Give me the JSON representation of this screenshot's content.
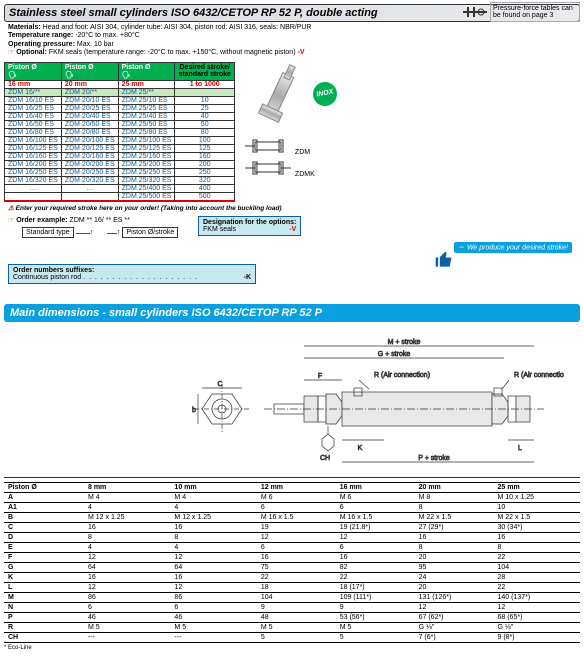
{
  "top": {
    "title": "Stainless steel small cylinders ISO 6432/CETOP RP 52 P, double acting",
    "pressure_note": "Pressure-force tables can be found on page 3",
    "materials_label": "Materials:",
    "materials": "Head and foot: AISI 304, cylinder tube: AISI 304, piston rod: AISI 316, seals: NBR/PUR",
    "temp_label": "Temperature range:",
    "temp": "-20°C to max. +80°C",
    "press_label": "Operating pressure:",
    "press": "Max. 10 bar",
    "opt_label": "Optional:",
    "opt": "FKM seals (temperature range: -20°C to max. +150°C, without magnetic piston)",
    "opt_suffix": "-V"
  },
  "cyl_table": {
    "piston_label": "Piston Ø",
    "cols": [
      "16 mm",
      "20 mm",
      "25 mm"
    ],
    "sub": [
      "ZDM 16/**",
      "ZDM 20/**",
      "ZDM 25/**"
    ],
    "stroke_hdr1": "Desired stroke/",
    "stroke_hdr2": "standard stroke",
    "stroke_range": "1 to 1000",
    "rows": [
      {
        "c": [
          "ZDM 16/10 ES",
          "ZDM 20/10 ES",
          "ZDM 25/10 ES"
        ],
        "s": "10"
      },
      {
        "c": [
          "ZDM 16/25 ES",
          "ZDM 20/25 ES",
          "ZDM 25/25 ES"
        ],
        "s": "25"
      },
      {
        "c": [
          "ZDM 16/40 ES",
          "ZDM 20/40 ES",
          "ZDM 25/40 ES"
        ],
        "s": "40"
      },
      {
        "c": [
          "ZDM 16/50 ES",
          "ZDM 20/50 ES",
          "ZDM 25/50 ES"
        ],
        "s": "50"
      },
      {
        "c": [
          "ZDM 16/80 ES",
          "ZDM 20/80 ES",
          "ZDM 25/80 ES"
        ],
        "s": "80"
      },
      {
        "c": [
          "ZDM 16/100 ES",
          "ZDM 20/100 ES",
          "ZDM 25/100 ES"
        ],
        "s": "100"
      },
      {
        "c": [
          "ZDM 16/125 ES",
          "ZDM 20/125 ES",
          "ZDM 25/125 ES"
        ],
        "s": "125"
      },
      {
        "c": [
          "ZDM 16/160 ES",
          "ZDM 20/160 ES",
          "ZDM 25/160 ES"
        ],
        "s": "160"
      },
      {
        "c": [
          "ZDM 16/200 ES",
          "ZDM 20/200 ES",
          "ZDM 25/200 ES"
        ],
        "s": "200"
      },
      {
        "c": [
          "ZDM 16/250 ES",
          "ZDM 20/250 ES",
          "ZDM 25/250 ES"
        ],
        "s": "250"
      },
      {
        "c": [
          "ZDM 16/320 ES",
          "ZDM 20/320 ES",
          "ZDM 25/320 ES"
        ],
        "s": "320"
      },
      {
        "c": [
          "…",
          "…",
          "ZDM 25/400 ES"
        ],
        "s": "400"
      },
      {
        "c": [
          "",
          "",
          "ZDM 25/500 ES"
        ],
        "s": "500"
      }
    ],
    "img_labels": {
      "zdm": "ZDM",
      "zdmk": "ZDMK",
      "inox": "INOX"
    }
  },
  "note": "Enter your required stroke here on your order! (Taking into account the buckling load)",
  "order": {
    "example_label": "Order example:",
    "example_code": "ZDM ** 16/ ** ES **",
    "std_type": "Standard type",
    "piston_stroke": "Piston Ø/stroke",
    "opt_title": "Designation for the options:",
    "opt_fkm": "FKM seals",
    "opt_fkm_code": "-V",
    "suffix_title": "Order numbers suffixes:",
    "suffix_item": "Continuous piston rod",
    "suffix_code": "-K"
  },
  "thumbs": "We produce your desired stroke!",
  "dim": {
    "title": "Main dimensions - small cylinders ISO 6432/CETOP RP 52 P",
    "drawing_labels": {
      "m_stroke": "M + stroke",
      "g_stroke": "G + stroke",
      "r_air": "R (Air connection)",
      "p_stroke": "P + stroke",
      "c": "C",
      "b": "b",
      "f": "F",
      "ch": "CH",
      "k": "K",
      "l": "L"
    },
    "header": "Piston Ø",
    "cols": [
      "8 mm",
      "10 mm",
      "12 mm",
      "16 mm",
      "20 mm",
      "25 mm"
    ],
    "rows": [
      {
        "l": "A",
        "v": [
          "M 4",
          "M 4",
          "M 6",
          "M 6",
          "M 8",
          "M 10 x 1.25"
        ]
      },
      {
        "l": "A1",
        "v": [
          "4",
          "4",
          "6",
          "6",
          "8",
          "10"
        ]
      },
      {
        "l": "B",
        "v": [
          "M 12 x 1.25",
          "M 12 x 1.25",
          "M 16 x 1.5",
          "M 16 x 1.5",
          "M 22 x 1.5",
          "M 22 x 1.5"
        ]
      },
      {
        "l": "C",
        "v": [
          "16",
          "16",
          "19",
          "19 (21.8*)",
          "27 (29*)",
          "30 (34*)"
        ]
      },
      {
        "l": "D",
        "v": [
          "8",
          "8",
          "12",
          "12",
          "16",
          "16"
        ]
      },
      {
        "l": "E",
        "v": [
          "4",
          "4",
          "6",
          "6",
          "8",
          "8"
        ]
      },
      {
        "l": "F",
        "v": [
          "12",
          "12",
          "16",
          "16",
          "20",
          "22"
        ]
      },
      {
        "l": "G",
        "v": [
          "64",
          "64",
          "75",
          "82",
          "95",
          "104"
        ]
      },
      {
        "l": "K",
        "v": [
          "16",
          "16",
          "22",
          "22",
          "24",
          "28"
        ]
      },
      {
        "l": "L",
        "v": [
          "12",
          "12",
          "18",
          "18 (17*)",
          "20",
          "22"
        ]
      },
      {
        "l": "M",
        "v": [
          "86",
          "86",
          "104",
          "109 (111*)",
          "131 (126*)",
          "140 (137*)"
        ]
      },
      {
        "l": "N",
        "v": [
          "6",
          "6",
          "9",
          "9",
          "12",
          "12"
        ]
      },
      {
        "l": "P",
        "v": [
          "46",
          "46",
          "48",
          "53 (56*)",
          "67 (62*)",
          "68 (65*)"
        ]
      },
      {
        "l": "R",
        "v": [
          "M 5",
          "M 5",
          "M 5",
          "M 5",
          "G ⅛\"",
          "G ⅛\""
        ]
      },
      {
        "l": "CH",
        "v": [
          "---",
          "---",
          "5",
          "5",
          "7 (6*)",
          "9 (8*)"
        ]
      }
    ],
    "eco": "* Eco-Line"
  },
  "colors": {
    "green": "#00b050",
    "blue_link": "#0a5fa5",
    "cyan": "#0a9fdf",
    "red": "#d00",
    "lt_green": "#c8e8c0",
    "lt_cyan": "#c8e8f0"
  }
}
